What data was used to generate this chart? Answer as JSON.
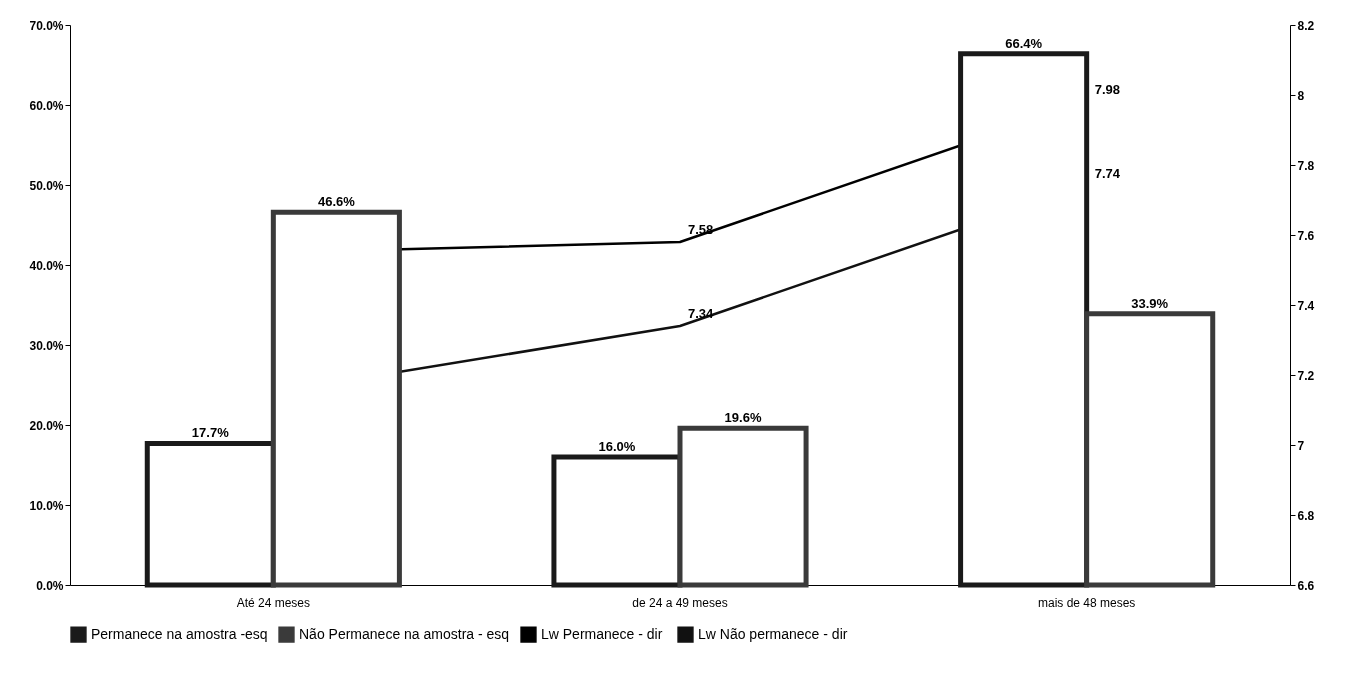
{
  "chart_data": {
    "type": "bar",
    "categories": [
      "Até 24 meses",
      "de 24 a 49 meses",
      "mais de 48 meses"
    ],
    "series": [
      {
        "name": "Permanece na amostra -esq",
        "type": "bar",
        "color": "#1a1a1a",
        "values": [
          17.7,
          16.0,
          66.4
        ],
        "value_labels": [
          "17.7%",
          "16.0%",
          "66.4%"
        ]
      },
      {
        "name": "Não Permanece na amostra - esq",
        "type": "bar",
        "color": "#3a3a3a",
        "values": [
          46.6,
          19.6,
          33.9
        ],
        "value_labels": [
          "46.6%",
          "19.6%",
          "33.9%"
        ]
      },
      {
        "name": "Lw Permanece  - dir",
        "type": "line",
        "axis": "y2",
        "color": "#000000",
        "values": [
          7.55,
          7.58,
          7.98
        ],
        "value_labels": [
          null,
          "7.58",
          "7.98"
        ]
      },
      {
        "name": "Lw Não permanece - dir",
        "type": "line",
        "axis": "y2",
        "color": "#111111",
        "values": [
          7.15,
          7.34,
          7.74
        ],
        "value_labels": [
          null,
          "7.34",
          "7.74"
        ]
      }
    ],
    "ylim": [
      0,
      70
    ],
    "yticks": [
      {
        "value": 0,
        "label": "0.0%"
      },
      {
        "value": 10,
        "label": "10.0%"
      },
      {
        "value": 20,
        "label": "20.0%"
      },
      {
        "value": 30,
        "label": "30.0%"
      },
      {
        "value": 40,
        "label": "40.0%"
      },
      {
        "value": 50,
        "label": "50.0%"
      },
      {
        "value": 60,
        "label": "60.0%"
      },
      {
        "value": 70,
        "label": "70.0%"
      }
    ],
    "y2lim": [
      6.6,
      8.2
    ],
    "y2ticks": [
      6.6,
      6.8,
      7,
      7.2,
      7.4,
      7.6,
      7.8,
      8,
      8.2
    ],
    "grid": false,
    "legend": "bottom"
  }
}
